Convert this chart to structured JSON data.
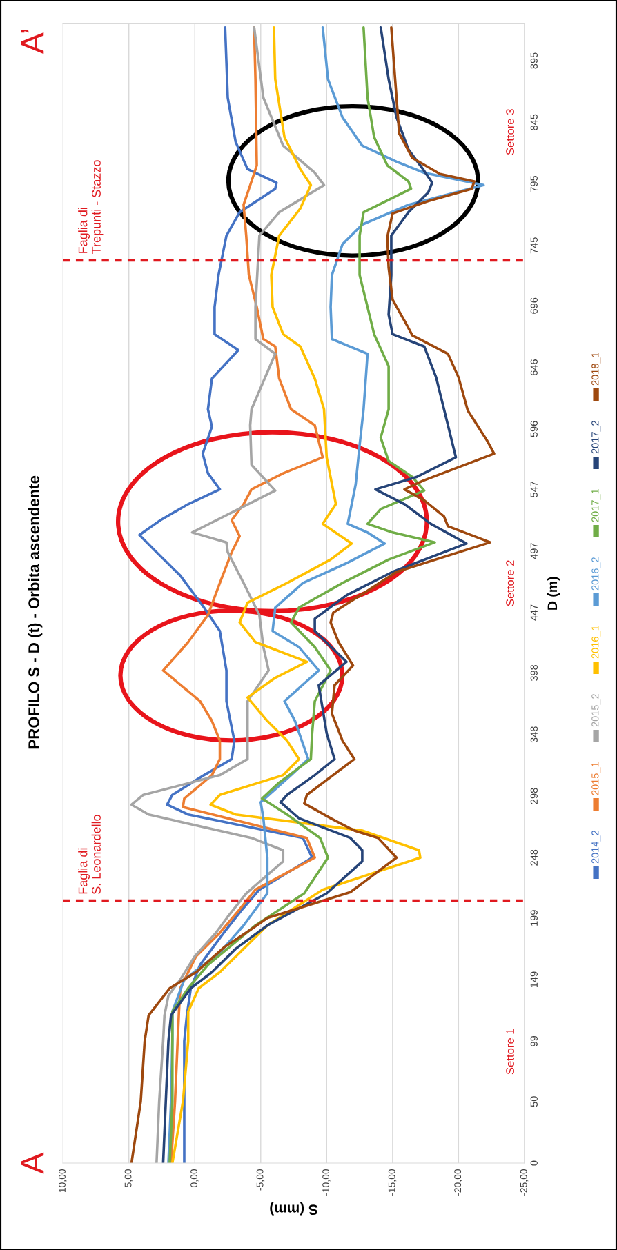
{
  "chart_data": {
    "type": "line",
    "title": "PROFILO S - D (t) - Orbita ascendente",
    "xlabel": "S (mm)",
    "ylabel": "D (m)",
    "ylim": [
      0,
      925
    ],
    "yticks": [
      0,
      50,
      99,
      149,
      199,
      248,
      298,
      348,
      398,
      447,
      497,
      547,
      596,
      646,
      696,
      745,
      795,
      845,
      895
    ],
    "xlim": [
      10,
      -25
    ],
    "xticks": [
      {
        "value": 10,
        "label": "10,00"
      },
      {
        "value": 5,
        "label": "5,00"
      },
      {
        "value": 0,
        "label": "0,00"
      },
      {
        "value": -5,
        "label": "-5,00"
      },
      {
        "value": -10,
        "label": "-10,00"
      },
      {
        "value": -15,
        "label": "-15,00"
      },
      {
        "value": -20,
        "label": "-20,00"
      },
      {
        "value": -25,
        "label": "-25,00"
      }
    ],
    "grid": "x",
    "legend": "right",
    "series": [
      {
        "name": "2014_2",
        "color": "#4472c4",
        "values": [
          0,
          50,
          99,
          120,
          142,
          161,
          187,
          206,
          222,
          248,
          264,
          283,
          291,
          299,
          315,
          328,
          343,
          375,
          400,
          432,
          451,
          477,
          496,
          510,
          522,
          535,
          547,
          560,
          576,
          598,
          612,
          637,
          660,
          673,
          695,
          721,
          753,
          772,
          791,
          796,
          807,
          829,
          865,
          922
        ],
        "x": [
          0.8,
          0.8,
          0.8,
          0.6,
          0.3,
          -0.4,
          -2.2,
          -3.6,
          -4.9,
          -8.9,
          -8.2,
          0.5,
          2.1,
          1.7,
          -0.7,
          -2.8,
          -3.0,
          -2.4,
          -2.4,
          -1.9,
          -0.7,
          1.1,
          2.9,
          4.2,
          2.6,
          0.5,
          -1.9,
          -1.0,
          -0.6,
          -1.3,
          -1.0,
          -1.3,
          -3.3,
          -1.5,
          -1.5,
          -1.8,
          -2.4,
          -3.4,
          -6.1,
          -6.2,
          -4.0,
          -3.1,
          -2.5,
          -2.3
        ]
      },
      {
        "name": "2015_1",
        "color": "#ed7d31",
        "values": [
          0,
          50,
          99,
          123,
          142,
          168,
          187,
          206,
          222,
          248,
          264,
          289,
          296,
          315,
          328,
          343,
          359,
          375,
          400,
          423,
          445,
          471,
          496,
          509,
          522,
          535,
          547,
          560,
          573,
          599,
          612,
          637,
          663,
          669,
          695,
          721,
          753,
          778,
          797,
          810,
          880,
          922
        ],
        "x": [
          1.8,
          1.5,
          1.3,
          1.2,
          1.1,
          -0.1,
          -1.9,
          -3.4,
          -4.6,
          -9.1,
          -8.5,
          0.9,
          0.8,
          -1.3,
          -1.9,
          -1.9,
          -1.3,
          -0.4,
          2.4,
          0.5,
          -1.0,
          -1.9,
          -2.8,
          -3.4,
          -2.8,
          -3.7,
          -4.3,
          -6.7,
          -9.7,
          -9.1,
          -7.3,
          -6.4,
          -6.1,
          -5.2,
          -4.7,
          -4.1,
          -3.9,
          -3.7,
          -4.3,
          -4.7,
          -4.6,
          -4.5
        ]
      },
      {
        "name": "2015_2",
        "color": "#a5a5a5",
        "values": [
          0,
          50,
          99,
          120,
          136,
          149,
          168,
          187,
          200,
          219,
          245,
          254,
          264,
          283,
          291,
          299,
          315,
          328,
          375,
          400,
          419,
          445,
          471,
          496,
          504,
          512,
          546,
          567,
          599,
          612,
          657,
          669,
          695,
          753,
          772,
          794,
          804,
          826,
          865,
          922
        ],
        "x": [
          2.9,
          2.7,
          2.4,
          2.3,
          2.0,
          1.1,
          0,
          -1.6,
          -2.5,
          -3.9,
          -6.7,
          -6.7,
          -4.3,
          3.5,
          4.8,
          3.9,
          -1.9,
          -4.0,
          -4.0,
          -5.6,
          -5.2,
          -4.9,
          -3.7,
          -2.5,
          -2.4,
          0.2,
          -6.1,
          -4.3,
          -4.2,
          -4.3,
          -6.1,
          -4.6,
          -4.6,
          -4.9,
          -6.4,
          -9.8,
          -9.1,
          -6.7,
          -5.2,
          -4.5
        ]
      },
      {
        "name": "2016_1",
        "color": "#ffc000",
        "values": [
          0,
          50,
          99,
          123,
          142,
          155,
          174,
          193,
          222,
          248,
          254,
          270,
          283,
          291,
          299,
          315,
          328,
          343,
          359,
          378,
          394,
          407,
          423,
          439,
          455,
          471,
          490,
          503,
          519,
          535,
          573,
          612,
          637,
          663,
          673,
          695,
          721,
          753,
          775,
          794,
          807,
          833,
          880,
          922
        ],
        "x": [
          1.7,
          0.9,
          0.5,
          0.5,
          -0.3,
          -1.9,
          -3.7,
          -5.5,
          -9.7,
          -17.1,
          -17.0,
          -12.7,
          -3.1,
          -1.2,
          -1.9,
          -6.7,
          -7.9,
          -7.0,
          -5.5,
          -4.0,
          -6.1,
          -8.5,
          -4.6,
          -3.4,
          -4.0,
          -7.0,
          -10.3,
          -11.9,
          -9.7,
          -10.7,
          -10.0,
          -9.8,
          -9.1,
          -8.0,
          -6.7,
          -5.9,
          -5.8,
          -6.4,
          -8.0,
          -8.8,
          -8.0,
          -6.8,
          -6.1,
          -6.0
        ]
      },
      {
        "name": "2016_2",
        "color": "#5b9bd5",
        "values": [
          0,
          50,
          99,
          123,
          149,
          171,
          193,
          219,
          248,
          280,
          293,
          315,
          328,
          359,
          375,
          400,
          419,
          432,
          451,
          471,
          487,
          503,
          512,
          519,
          535,
          551,
          583,
          612,
          657,
          669,
          695,
          721,
          746,
          762,
          778,
          794,
          804,
          813,
          826,
          849,
          880,
          922
        ],
        "x": [
          2.0,
          1.8,
          1.7,
          1.7,
          0.8,
          -1.9,
          -3.7,
          -5.5,
          -5.5,
          -5.2,
          -5.0,
          -7.3,
          -8.6,
          -7.6,
          -6.8,
          -9.4,
          -7.9,
          -5.9,
          -6.1,
          -8.2,
          -11.5,
          -14.4,
          -13.1,
          -11.6,
          -11.9,
          -12.2,
          -12.5,
          -12.8,
          -13.1,
          -10.4,
          -10.3,
          -10.4,
          -11.2,
          -12.7,
          -16.2,
          -21.9,
          -17.4,
          -15.3,
          -12.7,
          -11.2,
          -10.1,
          -9.7
        ]
      },
      {
        "name": "2017_1",
        "color": "#70ad47",
        "values": [
          0,
          50,
          99,
          123,
          142,
          161,
          177,
          193,
          219,
          248,
          264,
          283,
          296,
          309,
          328,
          349,
          375,
          400,
          419,
          439,
          451,
          471,
          490,
          504,
          512,
          519,
          531,
          546,
          557,
          570,
          589,
          612,
          647,
          673,
          695,
          721,
          753,
          772,
          791,
          797,
          810,
          833,
          865,
          922
        ],
        "x": [
          1.9,
          1.7,
          1.7,
          1.7,
          0.5,
          -1.0,
          -2.8,
          -4.6,
          -8.3,
          -10.1,
          -9.5,
          -7.0,
          -5.1,
          -6.4,
          -8.8,
          -8.9,
          -9.1,
          -10.3,
          -9.1,
          -7.3,
          -7.9,
          -11.2,
          -14.7,
          -18.2,
          -15.0,
          -13.1,
          -14.1,
          -17.4,
          -16.5,
          -14.7,
          -14.1,
          -14.7,
          -14.7,
          -13.6,
          -13.1,
          -12.5,
          -12.5,
          -12.8,
          -16.4,
          -16.2,
          -14.6,
          -13.6,
          -13.1,
          -12.8
        ]
      },
      {
        "name": "2017_2",
        "color": "#264478",
        "values": [
          0,
          50,
          99,
          120,
          142,
          155,
          174,
          193,
          219,
          245,
          254,
          264,
          280,
          293,
          299,
          315,
          328,
          349,
          388,
          407,
          432,
          442,
          461,
          480,
          503,
          519,
          535,
          547,
          557,
          573,
          599,
          612,
          638,
          663,
          673,
          689,
          721,
          753,
          772,
          788,
          796,
          807,
          823,
          849,
          880,
          922
        ],
        "x": [
          2.4,
          2.2,
          2.0,
          1.8,
          0.3,
          -1.3,
          -3.1,
          -5.5,
          -10.0,
          -12.7,
          -12.7,
          -11.8,
          -7.9,
          -6.5,
          -7.0,
          -9.1,
          -10.6,
          -10.0,
          -9.4,
          -11.5,
          -9.1,
          -9.1,
          -11.5,
          -15.0,
          -20.6,
          -17.9,
          -15.9,
          -13.7,
          -16.8,
          -19.8,
          -19.2,
          -18.9,
          -18.3,
          -17.4,
          -15.0,
          -14.7,
          -14.9,
          -14.9,
          -16.2,
          -17.7,
          -18.0,
          -17.3,
          -16.2,
          -15.3,
          -14.7,
          -14.1
        ]
      },
      {
        "name": "2018_1",
        "color": "#9e480e",
        "values": [
          0,
          50,
          99,
          120,
          142,
          155,
          175,
          190,
          199,
          213,
          220,
          248,
          264,
          270,
          280,
          292,
          299,
          328,
          343,
          365,
          388,
          404,
          423,
          439,
          447,
          464,
          480,
          504,
          517,
          525,
          538,
          547,
          554,
          576,
          586,
          611,
          638,
          657,
          672,
          682,
          701,
          727,
          752,
          771,
          781,
          791,
          797,
          803,
          816,
          836,
          922
        ],
        "x": [
          4.8,
          4.1,
          3.8,
          3.5,
          1.9,
          -0.1,
          -2.2,
          -4.3,
          -5.5,
          -9.7,
          -11.8,
          -15.3,
          -13.9,
          -12.1,
          -10.3,
          -8.3,
          -8.5,
          -12.1,
          -11.2,
          -10.4,
          -10.6,
          -12.0,
          -10.9,
          -10.3,
          -10.5,
          -13.0,
          -15.3,
          -22.4,
          -19.2,
          -18.9,
          -17.4,
          -15.9,
          -17.3,
          -22.7,
          -22.2,
          -20.7,
          -20.0,
          -19.2,
          -16.5,
          -16.0,
          -15.0,
          -14.7,
          -14.6,
          -15.0,
          -17.7,
          -21.0,
          -21.2,
          -18.6,
          -16.5,
          -15.5,
          -14.9
        ]
      }
    ],
    "ref_lines": [
      {
        "axis": "y",
        "value": 213,
        "label": "Faglia di\nS. Leonardello",
        "color": "#e0191f",
        "line_style": "dashed"
      },
      {
        "axis": "y",
        "value": 733,
        "label": "Faglia di\nTrepunti - Stazzo",
        "color": "#e0191f",
        "line_style": "dashed"
      }
    ],
    "annotations": [
      "A",
      "A’",
      "Settore 1",
      "Settore 2",
      "Settore 3"
    ]
  }
}
